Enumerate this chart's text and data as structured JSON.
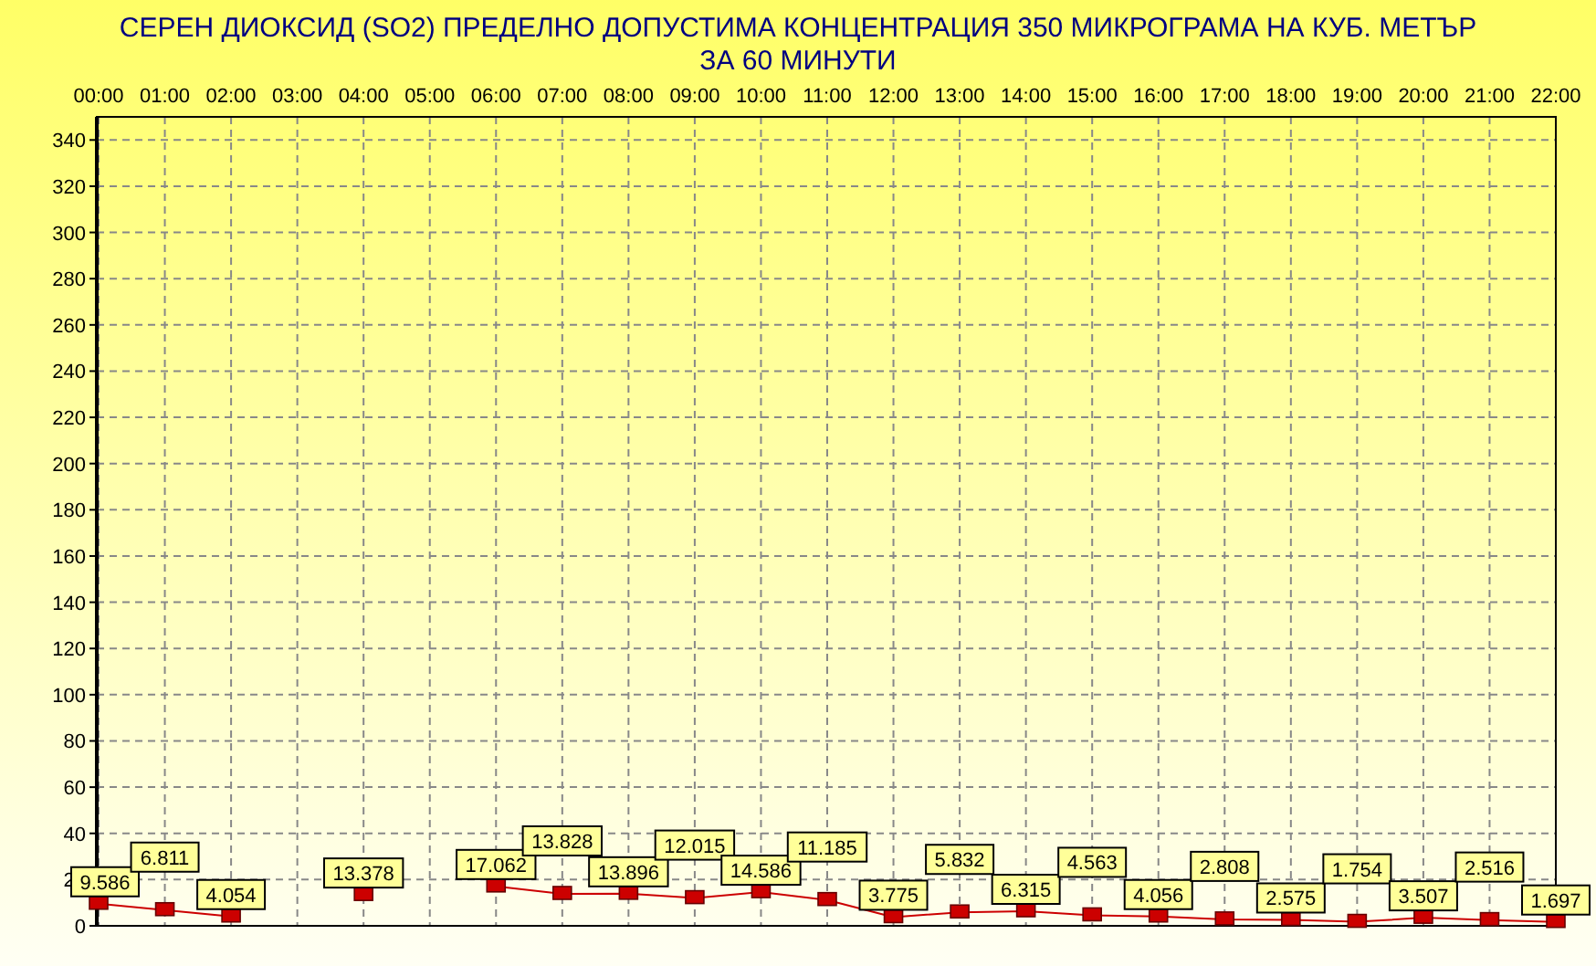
{
  "chart_data": {
    "type": "line",
    "title": "СЕРЕН ДИОКСИД  (SO2)  ПРЕДЕЛНО ДОПУСТИМА КОНЦЕНТРАЦИЯ 350 МИКРОГРАМА  НА КУБ. МЕТЪР\nЗА 60 МИНУТИ",
    "categories": [
      "00:00",
      "01:00",
      "02:00",
      "03:00",
      "04:00",
      "05:00",
      "06:00",
      "07:00",
      "08:00",
      "09:00",
      "10:00",
      "11:00",
      "12:00",
      "13:00",
      "14:00",
      "15:00",
      "16:00",
      "17:00",
      "18:00",
      "19:00",
      "20:00",
      "21:00",
      "22:00"
    ],
    "series": [
      {
        "color": "#cc0000",
        "values": [
          9.586,
          6.811,
          4.054,
          null,
          13.378,
          null,
          17.062,
          13.828,
          13.896,
          12.015,
          14.586,
          11.185,
          3.775,
          5.832,
          6.315,
          4.563,
          4.056,
          2.808,
          2.575,
          1.754,
          3.507,
          2.516,
          1.697
        ]
      }
    ],
    "ylim": [
      0,
      350
    ],
    "yticks": [
      0,
      20,
      40,
      60,
      80,
      100,
      120,
      140,
      160,
      180,
      200,
      220,
      240,
      260,
      280,
      300,
      320,
      340
    ],
    "grid": true,
    "marker": "square",
    "line_style": "solid",
    "data_labels": true
  }
}
